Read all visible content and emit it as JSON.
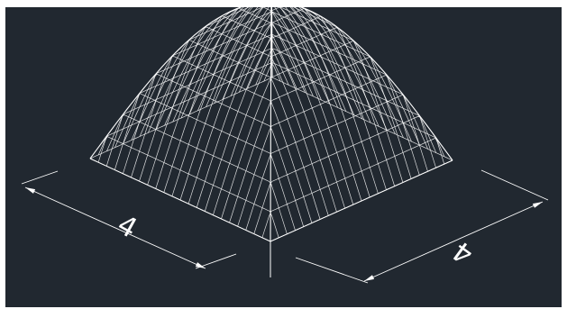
{
  "viewport": {
    "background": "#212830",
    "line_color": "#ffffff"
  },
  "dimensions": {
    "left_label": "4",
    "right_label": "4"
  }
}
